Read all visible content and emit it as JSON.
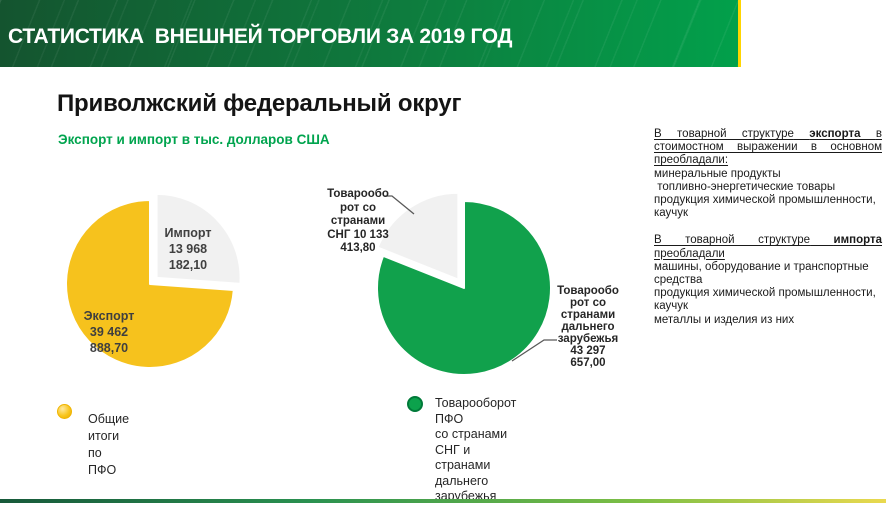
{
  "banner": {
    "title": "СТАТИСТИКА  ВНЕШНЕЙ ТОРГОВЛИ ЗА 2019 ГОД"
  },
  "slide": {
    "title": "Приволжский федеральный округ",
    "subtitle": "Экспорт и импорт в тыс. долларов США"
  },
  "colors": {
    "banner_dark_green": "#14542f",
    "banner_green": "#02a04b",
    "banner_accent_yellow": "#ffd500",
    "subtitle_green": "#00a44e",
    "pie_yellow": "#f6c21d",
    "pie_green": "#11a14c",
    "pie_gray": "#f1f1f1",
    "bottom_bar_left": "#17593a",
    "bottom_bar_right": "#ead94f"
  },
  "chart_data": [
    {
      "type": "pie",
      "title": "Общие итоги по ПФО",
      "units": "тыс. долларов США",
      "order": "clockwise-from-top",
      "slices": [
        {
          "name": "Импорт",
          "value": 13968182.1,
          "display_label": "Импорт\n13 968\n182,10",
          "color": "#f1f1f1",
          "exploded": true
        },
        {
          "name": "Экспорт",
          "value": 39462888.7,
          "display_label": "Экспорт\n39 462\n888,70",
          "color": "#f6c21d",
          "exploded": false
        }
      ]
    },
    {
      "type": "pie",
      "title": "Товарооборот ПФО со странами СНГ и странами дальнего зарубежья",
      "units": "тыс. долларов США",
      "order": "clockwise-from-top",
      "slices": [
        {
          "name": "Товарооборот со странами дальнего зарубежья",
          "value": 43297657.0,
          "display_label": "Товарообо\nрот со\nстранами\nдальнего\nзарубежья\n43 297\n657,00",
          "color": "#11a14c",
          "exploded": false
        },
        {
          "name": "Товарооборот со странами СНГ",
          "value": 10133413.8,
          "display_label": "Товарообо\nрот со\nстранами\nСНГ 10 133\n413,80",
          "color": "#f1f1f1",
          "exploded": true
        }
      ]
    }
  ],
  "legends": {
    "left": {
      "label": "Общие итоги по\nПФО"
    },
    "right": {
      "label": "Товарооборот ПФО\nсо странами СНГ и\nстранами дальнего\nзарубежья"
    }
  },
  "notes": {
    "export_structure": {
      "prefix": "В товарной структуре",
      "bold": "экспорта",
      "suffix": "в стоимостном выражении в основном преобладали:",
      "items": [
        "минеральные продукты",
        " топливно-энергетические товары",
        "продукция химической промышленности, каучук"
      ]
    },
    "import_structure": {
      "prefix": "В товарной структуре",
      "bold": "импорта",
      "suffix": "преобладали",
      "items": [
        "машины, оборудование и транспортные средства",
        "продукция химической промышленности, каучук",
        "металлы и изделия из них"
      ]
    }
  }
}
